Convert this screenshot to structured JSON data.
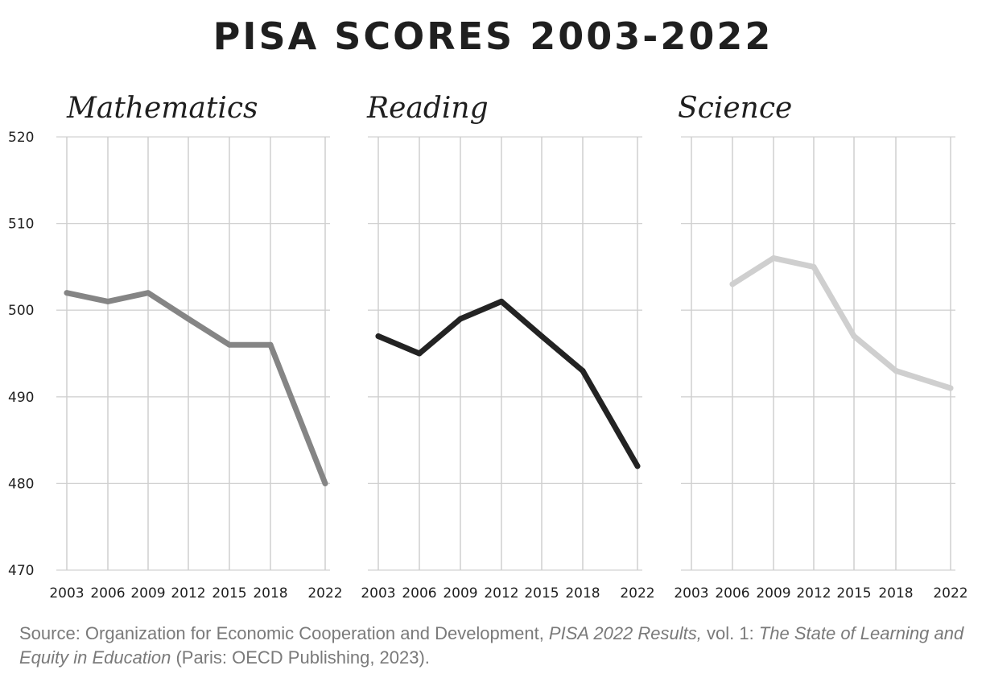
{
  "title": "PISA SCORES 2003-2022",
  "chart_data": {
    "type": "line",
    "title": "PISA SCORES 2003-2022",
    "x": [
      "2003",
      "2006",
      "2009",
      "2012",
      "2015",
      "2018",
      "2022"
    ],
    "ylim": [
      470,
      520
    ],
    "yticks": [
      "470",
      "480",
      "490",
      "500",
      "510",
      "520"
    ],
    "grid": true,
    "panels": [
      {
        "name": "Mathematics",
        "color": "#858585",
        "values": [
          502,
          501,
          502,
          499,
          496,
          496,
          480
        ]
      },
      {
        "name": "Reading",
        "color": "#232323",
        "values": [
          497,
          495,
          499,
          501,
          497,
          493,
          482
        ]
      },
      {
        "name": "Science",
        "color": "#cfcfcf",
        "values": [
          null,
          503,
          506,
          505,
          497,
          493,
          491
        ]
      }
    ]
  },
  "source": {
    "prefix": "Source: Organization for Economic Cooperation and Development, ",
    "report": "PISA 2022 Results,",
    "mid": " vol. 1: ",
    "volume_title": "The State of Learning and Equity in Education",
    "suffix": " (Paris: OECD Publishing, 2023)."
  }
}
